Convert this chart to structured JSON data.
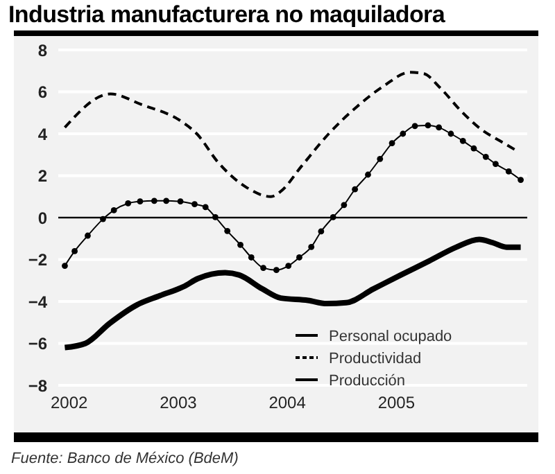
{
  "chart_data": {
    "type": "line",
    "title": "Industria manufacturera no maquiladora",
    "ylim": [
      -8,
      8
    ],
    "yticks": [
      -8,
      -6,
      -4,
      -2,
      0,
      2,
      4,
      6,
      8
    ],
    "xlim": [
      2001.9,
      2006.2
    ],
    "xticks": [
      2002,
      2003,
      2004,
      2005
    ],
    "grid": "y",
    "legend": "bottom right",
    "ref_lines": [
      {
        "axis": "y",
        "value": 0,
        "color": "#000000"
      }
    ],
    "series": [
      {
        "name": "Personal ocupado",
        "color": "#000000",
        "line_style": "solid",
        "marker": "none",
        "x": [
          2001.96,
          2002.15,
          2002.37,
          2002.62,
          2002.83,
          2003.05,
          2003.18,
          2003.43,
          2003.56,
          2003.77,
          2003.94,
          2004.19,
          2004.36,
          2004.54,
          2004.79,
          2005.04,
          2005.3,
          2005.55,
          2005.76,
          2005.88,
          2006.01,
          2006.14
        ],
        "values": [
          -6.2,
          -6,
          -5.05,
          -4.17,
          -3.73,
          -3.29,
          -2.91,
          -2.63,
          -2.74,
          -3.4,
          -3.84,
          -3.95,
          -4.1,
          -4.06,
          -3.4,
          -2.74,
          -2.07,
          -1.41,
          -1.04,
          -1.19,
          -1.41,
          -1.41
        ]
      },
      {
        "name": "Productividad",
        "color": "#000000",
        "line_style": "dashed",
        "marker": "none",
        "x": [
          2001.96,
          2002.38,
          2002.66,
          2003.04,
          2003.17,
          2003.36,
          2003.62,
          2003.85,
          2003.94,
          2004.13,
          2004.38,
          2004.64,
          2004.89,
          2005.12,
          2005.25,
          2005.4,
          2005.59,
          2005.78,
          2005.95,
          2006.1
        ],
        "values": [
          4.3,
          5.9,
          5.4,
          4.55,
          4,
          2.67,
          1.46,
          1,
          1.25,
          2.45,
          4,
          5.3,
          6.3,
          6.93,
          6.87,
          6.2,
          5.1,
          4.2,
          3.66,
          3.2
        ]
      },
      {
        "name": "Producción",
        "color": "#000000",
        "line_style": "solid",
        "marker": "circle",
        "x": [
          2001.96,
          2002.05,
          2002.17,
          2002.31,
          2002.41,
          2002.54,
          2002.65,
          2002.78,
          2002.89,
          2003.02,
          2003.15,
          2003.25,
          2003.34,
          2003.45,
          2003.57,
          2003.67,
          2003.78,
          2003.9,
          2004.01,
          2004.11,
          2004.22,
          2004.31,
          2004.42,
          2004.52,
          2004.62,
          2004.74,
          2004.85,
          2004.96,
          2005.06,
          2005.17,
          2005.29,
          2005.39,
          2005.5,
          2005.61,
          2005.71,
          2005.82,
          2005.91,
          2006.03,
          2006.14
        ],
        "values": [
          -2.3,
          -1.6,
          -0.86,
          -0.07,
          0.35,
          0.68,
          0.77,
          0.8,
          0.8,
          0.77,
          0.64,
          0.5,
          0.02,
          -0.64,
          -1.3,
          -1.9,
          -2.4,
          -2.5,
          -2.3,
          -1.9,
          -1.4,
          -0.66,
          0.02,
          0.6,
          1.35,
          2.05,
          2.8,
          3.55,
          4,
          4.37,
          4.4,
          4.3,
          4,
          3.66,
          3.3,
          2.9,
          2.56,
          2.2,
          1.8
        ]
      }
    ],
    "annotations": [
      "Fuente: Banco de México (BdeM)"
    ]
  }
}
